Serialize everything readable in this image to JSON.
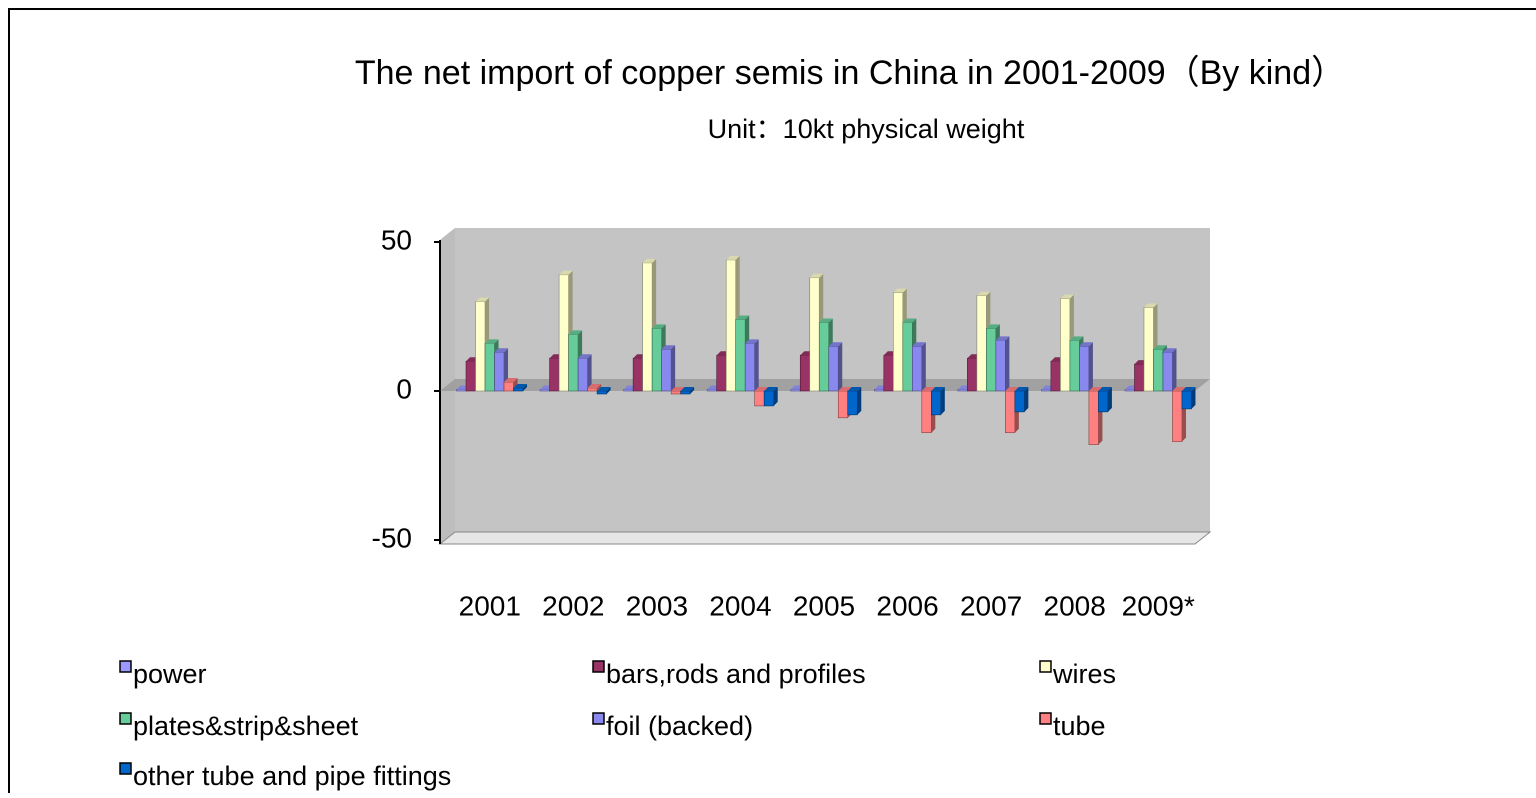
{
  "chart_data": {
    "type": "bar",
    "title": "The net import of copper semis in China in 2001-2009（By kind）",
    "subtitle": "Unit：10kt physical weight",
    "categories": [
      "2001",
      "2002",
      "2003",
      "2004",
      "2005",
      "2006",
      "2007",
      "2008",
      "2009*"
    ],
    "series": [
      {
        "name": "power",
        "color": "#9999ff",
        "values": [
          0.5,
          0.5,
          0.5,
          0.5,
          0.5,
          0.5,
          0.5,
          0.5,
          0.5
        ]
      },
      {
        "name": "bars,rods and profiles",
        "color": "#993366",
        "values": [
          10,
          11,
          11,
          12,
          12,
          12,
          11,
          10,
          9
        ]
      },
      {
        "name": "wires",
        "color": "#ffffcc",
        "values": [
          30,
          39,
          43,
          44,
          38,
          33,
          32,
          31,
          28
        ]
      },
      {
        "name": "plates&strip&sheet",
        "color": "#66cc99",
        "values": [
          16,
          19,
          21,
          24,
          23,
          23,
          21,
          17,
          14
        ]
      },
      {
        "name": "foil (backed)",
        "color": "#8888ee",
        "values": [
          13,
          11,
          14,
          16,
          15,
          15,
          17,
          15,
          13
        ]
      },
      {
        "name": "tube",
        "color": "#ff8080",
        "values": [
          3,
          1,
          -1,
          -5,
          -9,
          -14,
          -14,
          -18,
          -17
        ]
      },
      {
        "name": "other tube and pipe fittings",
        "color": "#0066cc",
        "values": [
          1,
          -1,
          -1,
          -5,
          -8,
          -8,
          -7,
          -7,
          -6
        ]
      }
    ],
    "ylim": [
      -50,
      50
    ],
    "yticks": [
      -50,
      0,
      50
    ],
    "grid": false
  }
}
